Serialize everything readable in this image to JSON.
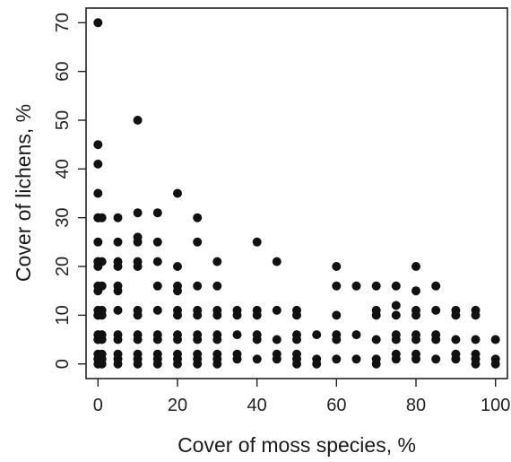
{
  "chart_data": {
    "type": "scatter",
    "title": "",
    "xlabel": "Cover of moss species, %",
    "ylabel": "Cover of lichens, %",
    "xlim": [
      -3,
      103
    ],
    "ylim": [
      -3,
      73
    ],
    "xticks": [
      0,
      20,
      40,
      60,
      80,
      100
    ],
    "yticks": [
      0,
      10,
      20,
      30,
      40,
      50,
      60,
      70
    ],
    "grid": false,
    "legend": "none",
    "point_color": "#111111",
    "series": [
      {
        "points": [
          [
            0,
            70
          ],
          [
            0,
            45
          ],
          [
            0,
            41
          ],
          [
            0,
            35
          ],
          [
            0,
            30
          ],
          [
            0,
            30
          ],
          [
            0,
            25
          ],
          [
            0,
            21
          ],
          [
            0,
            21
          ],
          [
            0,
            20
          ],
          [
            0,
            16
          ],
          [
            0,
            15
          ],
          [
            0,
            11
          ],
          [
            0,
            10
          ],
          [
            0,
            10
          ],
          [
            0,
            6
          ],
          [
            0,
            5
          ],
          [
            0,
            5
          ],
          [
            0,
            2
          ],
          [
            0,
            1
          ],
          [
            0,
            1
          ],
          [
            0,
            0
          ],
          [
            1,
            30
          ],
          [
            1,
            21
          ],
          [
            1,
            16
          ],
          [
            1,
            11
          ],
          [
            1,
            10
          ],
          [
            1,
            6
          ],
          [
            1,
            5
          ],
          [
            1,
            2
          ],
          [
            1,
            1
          ],
          [
            1,
            0
          ],
          [
            5,
            30
          ],
          [
            5,
            25
          ],
          [
            5,
            21
          ],
          [
            5,
            20
          ],
          [
            5,
            16
          ],
          [
            5,
            15
          ],
          [
            5,
            11
          ],
          [
            5,
            6
          ],
          [
            5,
            5
          ],
          [
            5,
            2
          ],
          [
            5,
            1
          ],
          [
            5,
            0
          ],
          [
            10,
            50
          ],
          [
            10,
            31
          ],
          [
            10,
            26
          ],
          [
            10,
            25
          ],
          [
            10,
            21
          ],
          [
            10,
            20
          ],
          [
            10,
            11
          ],
          [
            10,
            10
          ],
          [
            10,
            6
          ],
          [
            10,
            5
          ],
          [
            10,
            2
          ],
          [
            10,
            1
          ],
          [
            10,
            0
          ],
          [
            15,
            31
          ],
          [
            15,
            25
          ],
          [
            15,
            21
          ],
          [
            15,
            16
          ],
          [
            15,
            11
          ],
          [
            15,
            6
          ],
          [
            15,
            5
          ],
          [
            15,
            2
          ],
          [
            15,
            1
          ],
          [
            15,
            0
          ],
          [
            20,
            35
          ],
          [
            20,
            20
          ],
          [
            20,
            16
          ],
          [
            20,
            15
          ],
          [
            20,
            11
          ],
          [
            20,
            10
          ],
          [
            20,
            6
          ],
          [
            20,
            5
          ],
          [
            20,
            2
          ],
          [
            20,
            1
          ],
          [
            20,
            0
          ],
          [
            25,
            30
          ],
          [
            25,
            25
          ],
          [
            25,
            16
          ],
          [
            25,
            11
          ],
          [
            25,
            10
          ],
          [
            25,
            6
          ],
          [
            25,
            5
          ],
          [
            25,
            2
          ],
          [
            25,
            1
          ],
          [
            25,
            0
          ],
          [
            30,
            21
          ],
          [
            30,
            16
          ],
          [
            30,
            11
          ],
          [
            30,
            10
          ],
          [
            30,
            6
          ],
          [
            30,
            5
          ],
          [
            30,
            2
          ],
          [
            30,
            1
          ],
          [
            30,
            0
          ],
          [
            35,
            11
          ],
          [
            35,
            10
          ],
          [
            35,
            6
          ],
          [
            35,
            2
          ],
          [
            35,
            1
          ],
          [
            40,
            25
          ],
          [
            40,
            11
          ],
          [
            40,
            10
          ],
          [
            40,
            6
          ],
          [
            40,
            5
          ],
          [
            40,
            1
          ],
          [
            45,
            21
          ],
          [
            45,
            11
          ],
          [
            45,
            5
          ],
          [
            45,
            2
          ],
          [
            45,
            1
          ],
          [
            50,
            11
          ],
          [
            50,
            10
          ],
          [
            50,
            6
          ],
          [
            50,
            5
          ],
          [
            50,
            2
          ],
          [
            50,
            1
          ],
          [
            50,
            0
          ],
          [
            55,
            6
          ],
          [
            55,
            1
          ],
          [
            55,
            0
          ],
          [
            60,
            20
          ],
          [
            60,
            16
          ],
          [
            60,
            10
          ],
          [
            60,
            6
          ],
          [
            60,
            5
          ],
          [
            60,
            1
          ],
          [
            65,
            16
          ],
          [
            65,
            6
          ],
          [
            65,
            1
          ],
          [
            70,
            16
          ],
          [
            70,
            11
          ],
          [
            70,
            10
          ],
          [
            70,
            5
          ],
          [
            70,
            1
          ],
          [
            70,
            0
          ],
          [
            75,
            16
          ],
          [
            75,
            12
          ],
          [
            75,
            10
          ],
          [
            75,
            6
          ],
          [
            75,
            5
          ],
          [
            75,
            2
          ],
          [
            75,
            1
          ],
          [
            80,
            20
          ],
          [
            80,
            15
          ],
          [
            80,
            11
          ],
          [
            80,
            10
          ],
          [
            80,
            6
          ],
          [
            80,
            5
          ],
          [
            80,
            2
          ],
          [
            80,
            1
          ],
          [
            85,
            16
          ],
          [
            85,
            11
          ],
          [
            85,
            6
          ],
          [
            85,
            5
          ],
          [
            85,
            1
          ],
          [
            90,
            11
          ],
          [
            90,
            10
          ],
          [
            90,
            5
          ],
          [
            90,
            2
          ],
          [
            90,
            1
          ],
          [
            95,
            11
          ],
          [
            95,
            10
          ],
          [
            95,
            5
          ],
          [
            95,
            2
          ],
          [
            95,
            1
          ],
          [
            95,
            0
          ],
          [
            100,
            5
          ],
          [
            100,
            1
          ],
          [
            100,
            0
          ]
        ]
      }
    ]
  }
}
